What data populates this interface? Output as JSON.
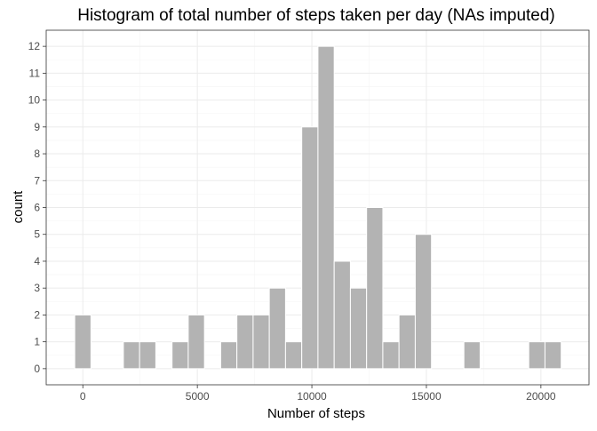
{
  "chart_data": {
    "type": "bar",
    "title": "Histogram of total number of steps taken per day (NAs imputed)",
    "xlabel": "Number of steps",
    "ylabel": "count",
    "bin_width": 708,
    "bins": [
      {
        "x0": -354,
        "x1": 354,
        "count": 2
      },
      {
        "x0": 1770,
        "x1": 2478,
        "count": 1
      },
      {
        "x0": 2478,
        "x1": 3186,
        "count": 1
      },
      {
        "x0": 3894,
        "x1": 4602,
        "count": 1
      },
      {
        "x0": 4602,
        "x1": 5310,
        "count": 2
      },
      {
        "x0": 6018,
        "x1": 6726,
        "count": 1
      },
      {
        "x0": 6726,
        "x1": 7434,
        "count": 2
      },
      {
        "x0": 7434,
        "x1": 8142,
        "count": 2
      },
      {
        "x0": 8142,
        "x1": 8850,
        "count": 3
      },
      {
        "x0": 8850,
        "x1": 9558,
        "count": 1
      },
      {
        "x0": 9558,
        "x1": 10266,
        "count": 9
      },
      {
        "x0": 10266,
        "x1": 10974,
        "count": 12
      },
      {
        "x0": 10974,
        "x1": 11682,
        "count": 4
      },
      {
        "x0": 11682,
        "x1": 12390,
        "count": 3
      },
      {
        "x0": 12390,
        "x1": 13098,
        "count": 6
      },
      {
        "x0": 13098,
        "x1": 13806,
        "count": 1
      },
      {
        "x0": 13806,
        "x1": 14514,
        "count": 2
      },
      {
        "x0": 14514,
        "x1": 15222,
        "count": 5
      },
      {
        "x0": 16638,
        "x1": 17346,
        "count": 1
      },
      {
        "x0": 19470,
        "x1": 20178,
        "count": 1
      },
      {
        "x0": 20178,
        "x1": 20886,
        "count": 1
      }
    ],
    "xlim": [
      -1600,
      22100
    ],
    "ylim": [
      -0.6,
      12.6
    ],
    "x_ticks": [
      0,
      5000,
      10000,
      15000,
      20000
    ],
    "x_tick_labels": [
      "0",
      "5000",
      "10000",
      "15000",
      "20000"
    ],
    "y_ticks": [
      0,
      1,
      2,
      3,
      4,
      5,
      6,
      7,
      8,
      9,
      10,
      11,
      12
    ],
    "y_tick_labels": [
      "0",
      "1",
      "2",
      "3",
      "4",
      "5",
      "6",
      "7",
      "8",
      "9",
      "10",
      "11",
      "12"
    ],
    "grid": true,
    "colors": {
      "bar_fill": "#b3b3b3",
      "bar_stroke": "#ffffff",
      "grid_major": "#ebebeb",
      "grid_minor": "#f5f5f5",
      "panel_border": "#333333",
      "tick_text": "#4d4d4d"
    }
  }
}
